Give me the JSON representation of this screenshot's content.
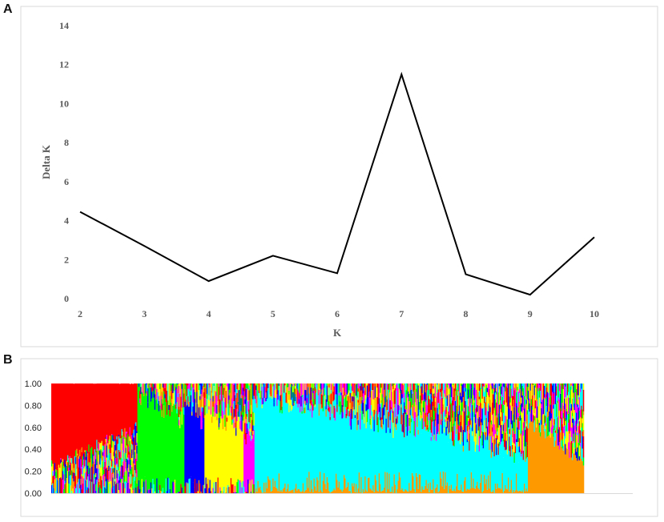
{
  "panels": {
    "a_label": "A",
    "b_label": "B"
  },
  "chart_data": [
    {
      "type": "line",
      "xlabel": "K",
      "ylabel": "Delta K",
      "x": [
        2,
        3,
        4,
        5,
        6,
        7,
        8,
        9,
        10
      ],
      "xticks": [
        "2",
        "3",
        "4",
        "5",
        "6",
        "7",
        "8",
        "9",
        "10"
      ],
      "yticks": [
        "0",
        "2",
        "4",
        "6",
        "8",
        "10",
        "12",
        "14"
      ],
      "ylim": [
        0,
        14
      ],
      "series": [
        {
          "values": [
            4.45,
            2.7,
            0.9,
            2.2,
            1.3,
            11.5,
            1.25,
            0.2,
            3.15
          ],
          "color": "#000000"
        }
      ],
      "grid": false
    },
    {
      "type": "bar",
      "subtype": "stacked-admixture",
      "yticks": [
        "0.00",
        "0.20",
        "0.40",
        "0.60",
        "0.80",
        "1.00"
      ],
      "ylim": [
        0,
        1
      ],
      "cluster_colors": [
        "#ff0000",
        "#00ff00",
        "#0000ff",
        "#ffff00",
        "#ff00ff",
        "#00ffff",
        "#ff9900"
      ],
      "groups": [
        {
          "cluster_color": "#ff0000",
          "share_of_individuals": 0.155,
          "dominant_start": 0.75,
          "dominant_end": 0.4
        },
        {
          "cluster_color": "#00ff00",
          "share_of_individuals": 0.085,
          "dominant_start": 0.85,
          "dominant_end": 0.6
        },
        {
          "cluster_color": "#0000ff",
          "share_of_individuals": 0.035,
          "dominant_start": 0.75,
          "dominant_end": 0.6
        },
        {
          "cluster_color": "#ffff00",
          "share_of_individuals": 0.07,
          "dominant_start": 0.7,
          "dominant_end": 0.5
        },
        {
          "cluster_color": "#ff00ff",
          "share_of_individuals": 0.02,
          "dominant_start": 0.5,
          "dominant_end": 0.4
        },
        {
          "cluster_color": "#00ffff",
          "share_of_individuals": 0.49,
          "dominant_start": 0.82,
          "dominant_end": 0.3
        },
        {
          "cluster_color": "#ff9900",
          "share_of_individuals": 0.1,
          "dominant_start": 0.65,
          "dominant_end": 0.28
        }
      ],
      "grid": false
    }
  ]
}
